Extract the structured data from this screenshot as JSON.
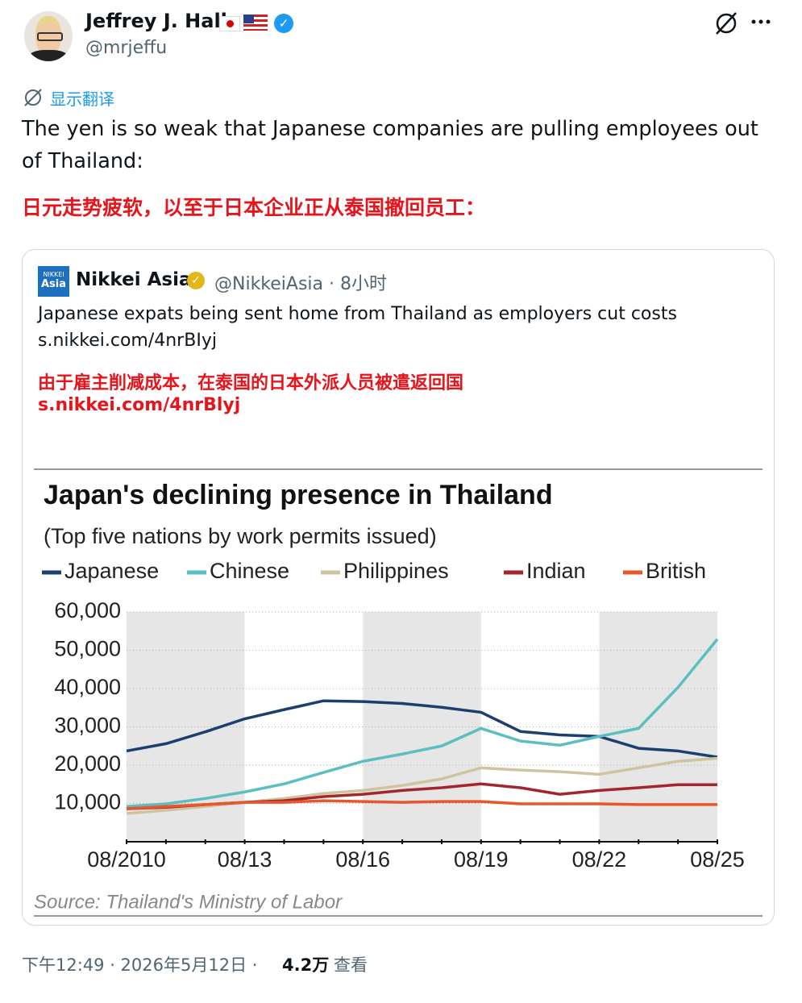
{
  "tweet": {
    "name": "Jeffrey J. Hall",
    "handle": "@mrjeffu",
    "translate_button": "显示翻译",
    "text": "The yen is so weak that Japanese companies are pulling employees out of Thailand:",
    "translation": "日元走势疲软，以至于日本企业正从泰国撤回员工：",
    "footer_time": "下午12:49 · 2026年5月12日 ·",
    "views": "4.2万",
    "views_label": "查看"
  },
  "quote": {
    "logo_top": "NIKKEI",
    "logo_bottom": "Asia",
    "name": "Nikkei Asia",
    "meta": "@NikkeiAsia · 8小时",
    "text": "Japanese expats being sent home from Thailand as employers cut costs",
    "link": "s.nikkei.com/4nrBIyj",
    "translation": "由于雇主削减成本，在泰国的日本外派人员被遣返回国",
    "translation_link": "s.nikkei.com/4nrBlyj"
  },
  "chart_data": {
    "type": "line",
    "title": "Japan's declining presence in Thailand",
    "subtitle": "(Top five nations by work permits issued)",
    "source": "Source: Thailand's Ministry of Labor",
    "categories": [
      "08/2010",
      null,
      null,
      "08/13",
      null,
      null,
      "08/16",
      null,
      null,
      "08/19",
      null,
      null,
      "08/22",
      null,
      null,
      "08/25"
    ],
    "series": [
      {
        "name": "Japanese",
        "color": "#1c3f6e",
        "values": [
          23700,
          25600,
          28700,
          32100,
          34500,
          36800,
          36600,
          36100,
          35100,
          33800,
          28800,
          27900,
          27500,
          24400,
          23700,
          22100
        ]
      },
      {
        "name": "Chinese",
        "color": "#5bbfc0",
        "values": [
          9200,
          9900,
          11300,
          13000,
          15100,
          18100,
          21000,
          22900,
          25000,
          29600,
          26300,
          25200,
          27500,
          29600,
          40300,
          52900
        ]
      },
      {
        "name": "Philippines",
        "color": "#cfc3a0",
        "values": [
          7400,
          8200,
          9200,
          10300,
          11300,
          12600,
          13400,
          14700,
          16400,
          19300,
          18700,
          18300,
          17600,
          19300,
          21000,
          21800
        ]
      },
      {
        "name": "Indian",
        "color": "#a3262d",
        "values": [
          8600,
          9000,
          9700,
          10300,
          10700,
          11800,
          12400,
          13400,
          14100,
          15100,
          14100,
          12400,
          13400,
          14100,
          14900,
          14900
        ]
      },
      {
        "name": "British",
        "color": "#e8562e",
        "values": [
          8600,
          9200,
          9700,
          10300,
          10300,
          10700,
          10500,
          10300,
          10500,
          10500,
          9900,
          9900,
          9900,
          9700,
          9700,
          9700
        ]
      }
    ],
    "ylim": [
      0,
      60000
    ],
    "yticks": [
      {
        "value": 10000,
        "label": "10,000"
      },
      {
        "value": 20000,
        "label": "20,000"
      },
      {
        "value": 30000,
        "label": "30,000"
      },
      {
        "value": 40000,
        "label": "40,000"
      },
      {
        "value": 50000,
        "label": "50,000"
      },
      {
        "value": 60000,
        "label": "60,000"
      }
    ],
    "grid": true
  }
}
